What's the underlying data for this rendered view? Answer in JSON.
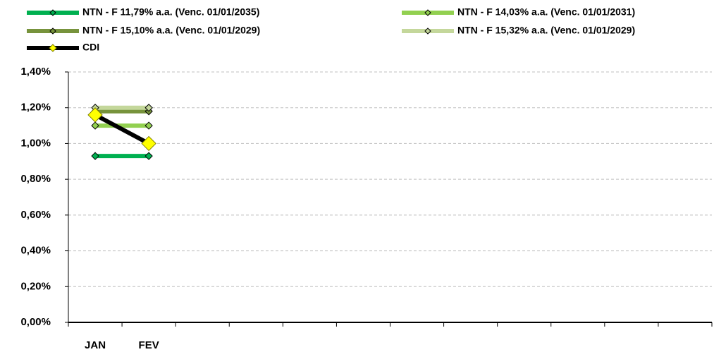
{
  "chart_data": {
    "type": "line",
    "categories": [
      "JAN",
      "FEV",
      null,
      null,
      null,
      null,
      null,
      null,
      null,
      null,
      null,
      null
    ],
    "series": [
      {
        "name": "NTN - F 11,79% a.a. (Venc. 01/01/2035)",
        "color": "#00b050",
        "marker_color": "#00b050",
        "values": [
          0.93,
          0.93,
          null,
          null,
          null,
          null,
          null,
          null,
          null,
          null,
          null,
          null
        ]
      },
      {
        "name": "NTN - F 14,03% a.a. (Venc. 01/01/2031)",
        "color": "#92d050",
        "marker_color": "#92d050",
        "values": [
          1.1,
          1.1,
          null,
          null,
          null,
          null,
          null,
          null,
          null,
          null,
          null,
          null
        ]
      },
      {
        "name": "NTN - F 15,10% a.a. (Venc. 01/01/2029)",
        "color": "#77933c",
        "marker_color": "#77933c",
        "values": [
          1.18,
          1.18,
          null,
          null,
          null,
          null,
          null,
          null,
          null,
          null,
          null,
          null
        ]
      },
      {
        "name": "NTN - F 15,32% a.a. (Venc. 01/01/2029)",
        "color": "#c4d79b",
        "marker_color": "#c4d79b",
        "values": [
          1.2,
          1.2,
          null,
          null,
          null,
          null,
          null,
          null,
          null,
          null,
          null,
          null
        ]
      },
      {
        "name": "CDI",
        "color": "#000000",
        "marker_color": "#ffff00",
        "values": [
          1.16,
          1.0,
          null,
          null,
          null,
          null,
          null,
          null,
          null,
          null,
          null,
          null
        ]
      }
    ],
    "ylim": [
      0,
      1.4
    ],
    "yticks": [
      {
        "value": 0,
        "label": "0,00%"
      },
      {
        "value": 0.2,
        "label": "0,20%"
      },
      {
        "value": 0.4,
        "label": "0,40%"
      },
      {
        "value": 0.6,
        "label": "0,60%"
      },
      {
        "value": 0.8,
        "label": "0,80%"
      },
      {
        "value": 1.0,
        "label": "1,00%"
      },
      {
        "value": 1.2,
        "label": "1,20%"
      },
      {
        "value": 1.4,
        "label": "1,40%"
      }
    ],
    "grid": true
  }
}
